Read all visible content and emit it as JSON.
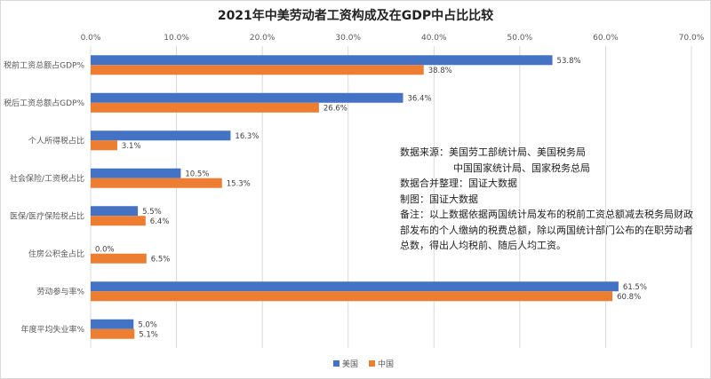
{
  "chart_data": {
    "type": "bar",
    "orientation": "horizontal",
    "title": "2021年中美劳动者工资构成及在GDP中占比比较",
    "categories": [
      "税前工资总额占GDP%",
      "税后工资总额占GDP%",
      "个人所得税占比",
      "社会保险/工资税占比",
      "医保/医疗保险税占比",
      "住房公积金占比",
      "劳动参与率%",
      "年度平均失业率%"
    ],
    "series": [
      {
        "name": "美国",
        "color": "#4472C4",
        "values": [
          53.8,
          36.4,
          16.3,
          10.5,
          5.5,
          0.0,
          61.5,
          5.0
        ],
        "labels": [
          "53.8%",
          "36.4%",
          "16.3%",
          "10.5%",
          "5.5%",
          "0.0%",
          "61.5%",
          "5.0%"
        ]
      },
      {
        "name": "中国",
        "color": "#ED7D31",
        "values": [
          38.8,
          26.6,
          3.1,
          15.3,
          6.4,
          6.5,
          60.8,
          5.1
        ],
        "labels": [
          "38.8%",
          "26.6%",
          "3.1%",
          "15.3%",
          "6.4%",
          "6.5%",
          "60.8%",
          "5.1%"
        ]
      }
    ],
    "xlim": [
      0,
      70
    ],
    "ticks": [
      "0.0%",
      "10.0%",
      "20.0%",
      "30.0%",
      "40.0%",
      "50.0%",
      "60.0%",
      "70.0%"
    ],
    "axis_position": "top",
    "grid": true,
    "legend": "bottom-center"
  },
  "note": {
    "source_line1": "数据来源：美国劳工部统计局、美国税务局",
    "source_line2": "中国国家统计局、国家税务总局",
    "merge": "数据合并整理：国证大数据",
    "made_by": "制图：国证大数据",
    "remark": "备注：以上数据依据两国统计局发布的税前工资总额减去税务局财政部发布的个人缴纳的税费总额，除以两国统计部门公布的在职劳动者总数，得出人均税前、随后人均工资。"
  }
}
